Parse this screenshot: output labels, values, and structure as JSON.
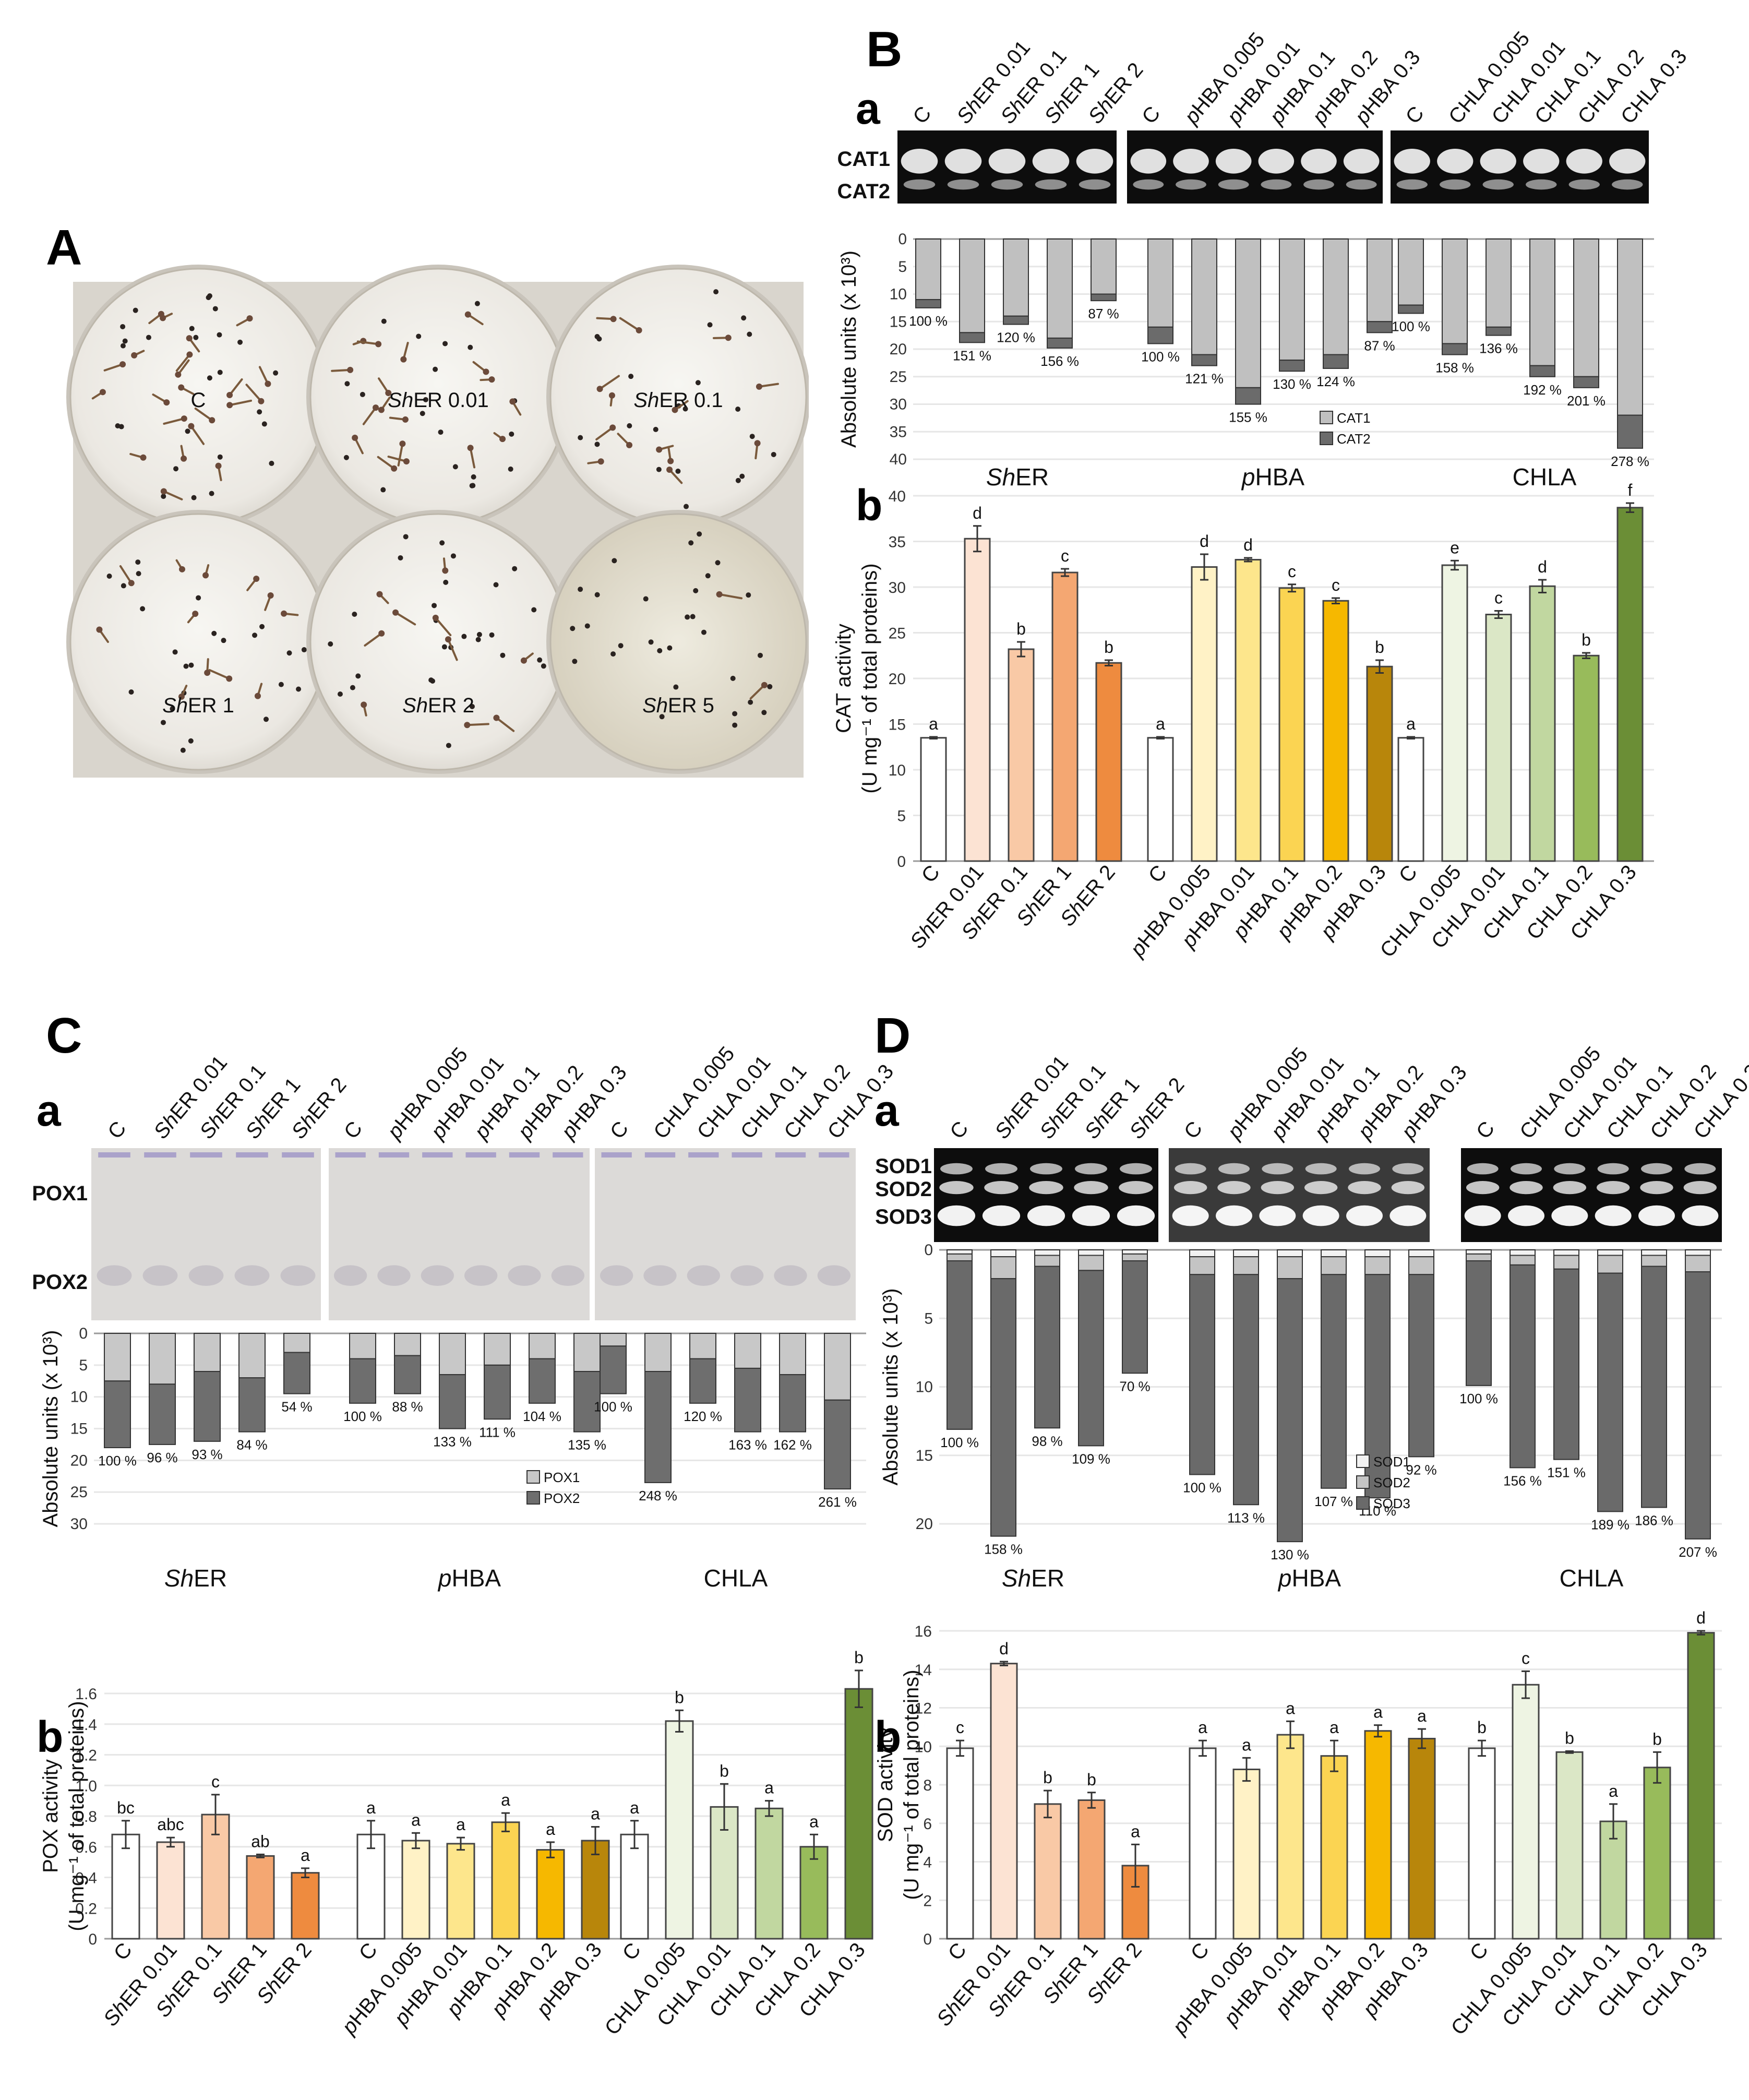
{
  "panels": {
    "A": "A",
    "B": "B",
    "C": "C",
    "D": "D"
  },
  "sub": {
    "a": "a",
    "b": "b"
  },
  "groups": [
    "ShER",
    "pHBA",
    "CHLA"
  ],
  "plates": [
    "C",
    "ShER 0.01",
    "ShER 0.1",
    "ShER 1",
    "ShER 2",
    "ShER 5"
  ],
  "gel_lanes": [
    [
      "C",
      "ShER 0.01",
      "ShER 0.1",
      "ShER 1",
      "ShER 2"
    ],
    [
      "C",
      "pHBA 0.005",
      "pHBA 0.01",
      "pHBA 0.1",
      "pHBA 0.2",
      "pHBA 0.3"
    ],
    [
      "C",
      "CHLA 0.005",
      "CHLA 0.01",
      "CHLA 0.1",
      "CHLA 0.2",
      "CHLA 0.3"
    ]
  ],
  "categories": [
    [
      "C",
      "ShER 0.01",
      "ShER 0.1",
      "ShER 1",
      "ShER 2"
    ],
    [
      "C",
      "pHBA 0.005",
      "pHBA 0.01",
      "pHBA 0.1",
      "pHBA 0.2",
      "pHBA 0.3"
    ],
    [
      "C",
      "CHLA 0.005",
      "CHLA 0.01",
      "CHLA 0.1",
      "CHLA 0.2",
      "CHLA 0.3"
    ]
  ],
  "colors": {
    "sher": [
      "#ffffff",
      "#fce3d3",
      "#f9c9a6",
      "#f4a772",
      "#ee8b3f"
    ],
    "phba": [
      "#ffffff",
      "#fff2c6",
      "#fde68c",
      "#fbd452",
      "#f6b800",
      "#b8860b"
    ],
    "chla": [
      "#ffffff",
      "#eef4e3",
      "#dbe7c6",
      "#c1d7a0",
      "#98bb5b",
      "#6b8e36"
    ],
    "cat1": "#c0c0c0",
    "cat2": "#6b6b6b",
    "pox1": "#c8c8c8",
    "pox2": "#6e6e6e",
    "sod1": "#f2f2f2",
    "sod2": "#c4c4c4",
    "sod3": "#6a6a6a"
  },
  "chart_data": [
    {
      "id": "B-a",
      "type": "bar",
      "title": "",
      "ylabel": "Absolute units (x 10³)",
      "ylim": [
        0,
        40
      ],
      "yticks": [
        0,
        5,
        10,
        15,
        20,
        25,
        30,
        35,
        40
      ],
      "inverted": true,
      "legend": [
        "CAT1",
        "CAT2"
      ],
      "legend_position": "bottom-right",
      "series": [
        {
          "name": "CAT1",
          "values": [
            [
              11,
              17,
              14,
              18,
              10
            ],
            [
              16,
              21,
              27,
              22,
              21,
              15
            ],
            [
              12,
              19,
              16,
              23,
              25,
              32
            ]
          ]
        },
        {
          "name": "CAT2",
          "values": [
            [
              1.5,
              1.8,
              1.5,
              1.8,
              1.2
            ],
            [
              3,
              2,
              3,
              2,
              2.5,
              2
            ],
            [
              1.5,
              2,
              1.5,
              2,
              2,
              6
            ]
          ]
        }
      ],
      "percent_labels": [
        [
          "100 %",
          "151 %",
          "120 %",
          "156 %",
          "87 %"
        ],
        [
          "100 %",
          "121 %",
          "155 %",
          "130 %",
          "124 %",
          "87 %"
        ],
        [
          "100 %",
          "158 %",
          "136 %",
          "192 %",
          "201 %",
          "278 %"
        ]
      ],
      "band_labels": [
        "CAT1",
        "CAT2"
      ]
    },
    {
      "id": "B-b",
      "type": "bar",
      "title": "",
      "ylabel": "CAT activity",
      "ylabel2": "(U mg⁻¹ of total proteins)",
      "ylim": [
        0,
        40
      ],
      "yticks": [
        0,
        5,
        10,
        15,
        20,
        25,
        30,
        35,
        40
      ],
      "values": [
        [
          13.5,
          35.3,
          23.2,
          31.6,
          21.7
        ],
        [
          13.5,
          32.2,
          33.0,
          29.9,
          28.5,
          21.3
        ],
        [
          13.5,
          32.4,
          27.0,
          30.1,
          22.5,
          38.7
        ]
      ],
      "errors": [
        [
          0.1,
          1.4,
          0.8,
          0.4,
          0.3
        ],
        [
          0.1,
          1.4,
          0.2,
          0.4,
          0.3,
          0.7
        ],
        [
          0.1,
          0.5,
          0.4,
          0.7,
          0.3,
          0.5
        ]
      ],
      "letters": [
        [
          "a",
          "d",
          "b",
          "c",
          "b"
        ],
        [
          "a",
          "d",
          "d",
          "c",
          "c",
          "b"
        ],
        [
          "a",
          "e",
          "c",
          "d",
          "b",
          "f"
        ]
      ]
    },
    {
      "id": "C-a",
      "type": "bar",
      "title": "",
      "ylabel": "Absolute units (x 10³)",
      "ylim": [
        0,
        30
      ],
      "yticks": [
        0,
        5,
        10,
        15,
        20,
        25,
        30
      ],
      "inverted": true,
      "legend": [
        "POX1",
        "POX2"
      ],
      "legend_position": "bottom-right",
      "series": [
        {
          "name": "POX1",
          "values": [
            [
              7.5,
              8,
              6,
              7,
              3
            ],
            [
              4,
              3.5,
              6.5,
              5,
              4,
              6
            ],
            [
              2,
              6,
              4,
              5.5,
              6.5,
              10.5
            ]
          ]
        },
        {
          "name": "POX2",
          "values": [
            [
              10.5,
              9.5,
              11,
              8.5,
              6.5
            ],
            [
              7,
              6,
              8.5,
              8.5,
              7,
              9.5
            ],
            [
              7.5,
              17.5,
              7,
              10,
              9,
              14
            ]
          ]
        }
      ],
      "percent_labels": [
        [
          "100 %",
          "96 %",
          "93 %",
          "84 %",
          "54 %"
        ],
        [
          "100 %",
          "88 %",
          "133 %",
          "111 %",
          "104 %",
          "135 %"
        ],
        [
          "100 %",
          "248 %",
          "120 %",
          "163 %",
          "162 %",
          "261 %"
        ]
      ],
      "band_labels": [
        "POX1",
        "POX2"
      ]
    },
    {
      "id": "C-b",
      "type": "bar",
      "title": "",
      "ylabel": "POX activity",
      "ylabel2": "(U mg⁻¹ of total proteins)",
      "ylim": [
        0,
        1.6
      ],
      "yticks": [
        0,
        0.2,
        0.4,
        0.6,
        0.8,
        1.0,
        1.2,
        1.4,
        1.6
      ],
      "values": [
        [
          0.68,
          0.63,
          0.81,
          0.54,
          0.43
        ],
        [
          0.68,
          0.64,
          0.62,
          0.76,
          0.58,
          0.64
        ],
        [
          0.68,
          1.42,
          0.86,
          0.85,
          0.6,
          1.63
        ]
      ],
      "errors": [
        [
          0.09,
          0.03,
          0.13,
          0.01,
          0.03
        ],
        [
          0.09,
          0.05,
          0.04,
          0.06,
          0.05,
          0.09
        ],
        [
          0.09,
          0.07,
          0.15,
          0.05,
          0.08,
          0.12
        ]
      ],
      "letters": [
        [
          "bc",
          "abc",
          "c",
          "ab",
          "a"
        ],
        [
          "a",
          "a",
          "a",
          "a",
          "a",
          "a"
        ],
        [
          "a",
          "b",
          "b",
          "a",
          "a",
          "b"
        ]
      ]
    },
    {
      "id": "D-a",
      "type": "bar",
      "title": "",
      "ylabel": "Absolute units (x 10³)",
      "ylim": [
        0,
        20
      ],
      "yticks": [
        0,
        5,
        10,
        15,
        20
      ],
      "inverted": true,
      "legend": [
        "SOD1",
        "SOD2",
        "SOD3"
      ],
      "legend_position": "bottom-right",
      "series": [
        {
          "name": "SOD1",
          "values": [
            [
              0.3,
              0.5,
              0.4,
              0.4,
              0.3
            ],
            [
              0.5,
              0.5,
              0.5,
              0.5,
              0.5,
              0.5
            ],
            [
              0.3,
              0.4,
              0.4,
              0.4,
              0.4,
              0.4
            ]
          ]
        },
        {
          "name": "SOD2",
          "values": [
            [
              0.5,
              1.6,
              0.8,
              1.1,
              0.5
            ],
            [
              1.3,
              1.3,
              1.6,
              1.3,
              1.3,
              1.3
            ],
            [
              0.5,
              0.7,
              1.0,
              1.3,
              0.8,
              1.2
            ]
          ]
        },
        {
          "name": "SOD3",
          "values": [
            [
              12.3,
              18.8,
              11.8,
              12.8,
              8.2
            ],
            [
              14.6,
              16.8,
              19.2,
              15.6,
              16.3,
              13.3
            ],
            [
              9.1,
              14.8,
              13.9,
              17.4,
              17.6,
              19.5
            ]
          ]
        }
      ],
      "percent_labels": [
        [
          "100 %",
          "158 %",
          "98 %",
          "109 %",
          "70 %"
        ],
        [
          "100 %",
          "113 %",
          "130 %",
          "107 %",
          "110 %",
          "92 %"
        ],
        [
          "100 %",
          "156 %",
          "151 %",
          "189 %",
          "186 %",
          "207 %"
        ]
      ],
      "band_labels": [
        "SOD1",
        "SOD2",
        "SOD3"
      ]
    },
    {
      "id": "D-b",
      "type": "bar",
      "title": "",
      "ylabel": "SOD activity",
      "ylabel2": "(U mg⁻¹ of total proteins)",
      "ylim": [
        0,
        16
      ],
      "yticks": [
        0,
        2,
        4,
        6,
        8,
        10,
        12,
        14,
        16
      ],
      "values": [
        [
          9.9,
          14.3,
          7.0,
          7.2,
          3.8
        ],
        [
          9.9,
          8.8,
          10.6,
          9.5,
          10.8,
          10.4
        ],
        [
          9.9,
          13.2,
          9.7,
          6.1,
          8.9,
          15.9
        ]
      ],
      "errors": [
        [
          0.4,
          0.1,
          0.7,
          0.4,
          1.1
        ],
        [
          0.4,
          0.6,
          0.7,
          0.8,
          0.3,
          0.5
        ],
        [
          0.4,
          0.7,
          0.05,
          0.9,
          0.8,
          0.1
        ]
      ],
      "letters": [
        [
          "c",
          "d",
          "b",
          "b",
          "a"
        ],
        [
          "a",
          "a",
          "a",
          "a",
          "a",
          "a"
        ],
        [
          "b",
          "c",
          "b",
          "a",
          "b",
          "d"
        ]
      ]
    }
  ]
}
